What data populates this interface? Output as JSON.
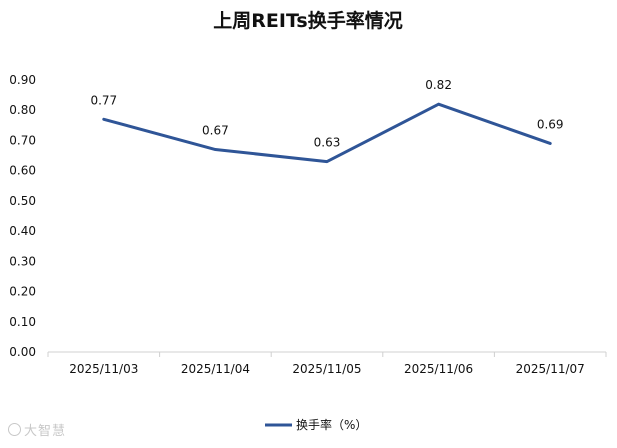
{
  "chart_data": {
    "type": "line",
    "title": "上周REITs换手率情况",
    "xlabel": "",
    "ylabel": "",
    "categories": [
      "2025/11/03",
      "2025/11/04",
      "2025/11/05",
      "2025/11/06",
      "2025/11/07"
    ],
    "series": [
      {
        "name": "换手率（%）",
        "values": [
          0.77,
          0.67,
          0.63,
          0.82,
          0.69
        ],
        "color": "#2F5597"
      }
    ],
    "data_labels": [
      "0.77",
      "0.67",
      "0.63",
      "0.82",
      "0.69"
    ],
    "ylim": [
      0,
      0.9
    ],
    "yticks": [
      "0.00",
      "0.10",
      "0.20",
      "0.30",
      "0.40",
      "0.50",
      "0.60",
      "0.70",
      "0.80",
      "0.90"
    ],
    "grid": false,
    "legend_position": "bottom-center"
  },
  "watermark": {
    "text": "大智慧",
    "color": "#c8c8c8"
  }
}
